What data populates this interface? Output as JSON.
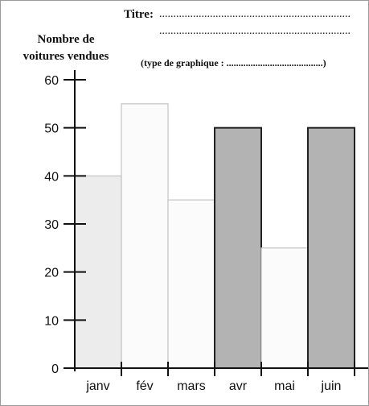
{
  "header": {
    "titre_label": "Titre:",
    "titre_dots_1": "....................................................................",
    "titre_dots_2": "....................................................................",
    "ylabel": "Nombre de\nvoitures vendues",
    "type_note": "(type de graphique : ........................................)"
  },
  "chart_data": {
    "type": "bar",
    "title": "",
    "xlabel": "",
    "ylabel": "Nombre de voitures vendues",
    "categories": [
      "janv",
      "fév",
      "mars",
      "avr",
      "mai",
      "juin"
    ],
    "values": [
      40,
      55,
      35,
      50,
      25,
      50
    ],
    "fill_colors": [
      "#ececec",
      "#fbfbfb",
      "#fbfbfb",
      "#b3b3b3",
      "#fbfbfb",
      "#b3b3b3"
    ],
    "yticks": [
      0,
      10,
      20,
      30,
      40,
      50,
      60
    ],
    "ylim": [
      0,
      60
    ],
    "grid": false,
    "legend": "none"
  },
  "colors": {
    "axis": "#111111",
    "bar_outline": "#222222",
    "light_outline": "#c4c4c4"
  }
}
